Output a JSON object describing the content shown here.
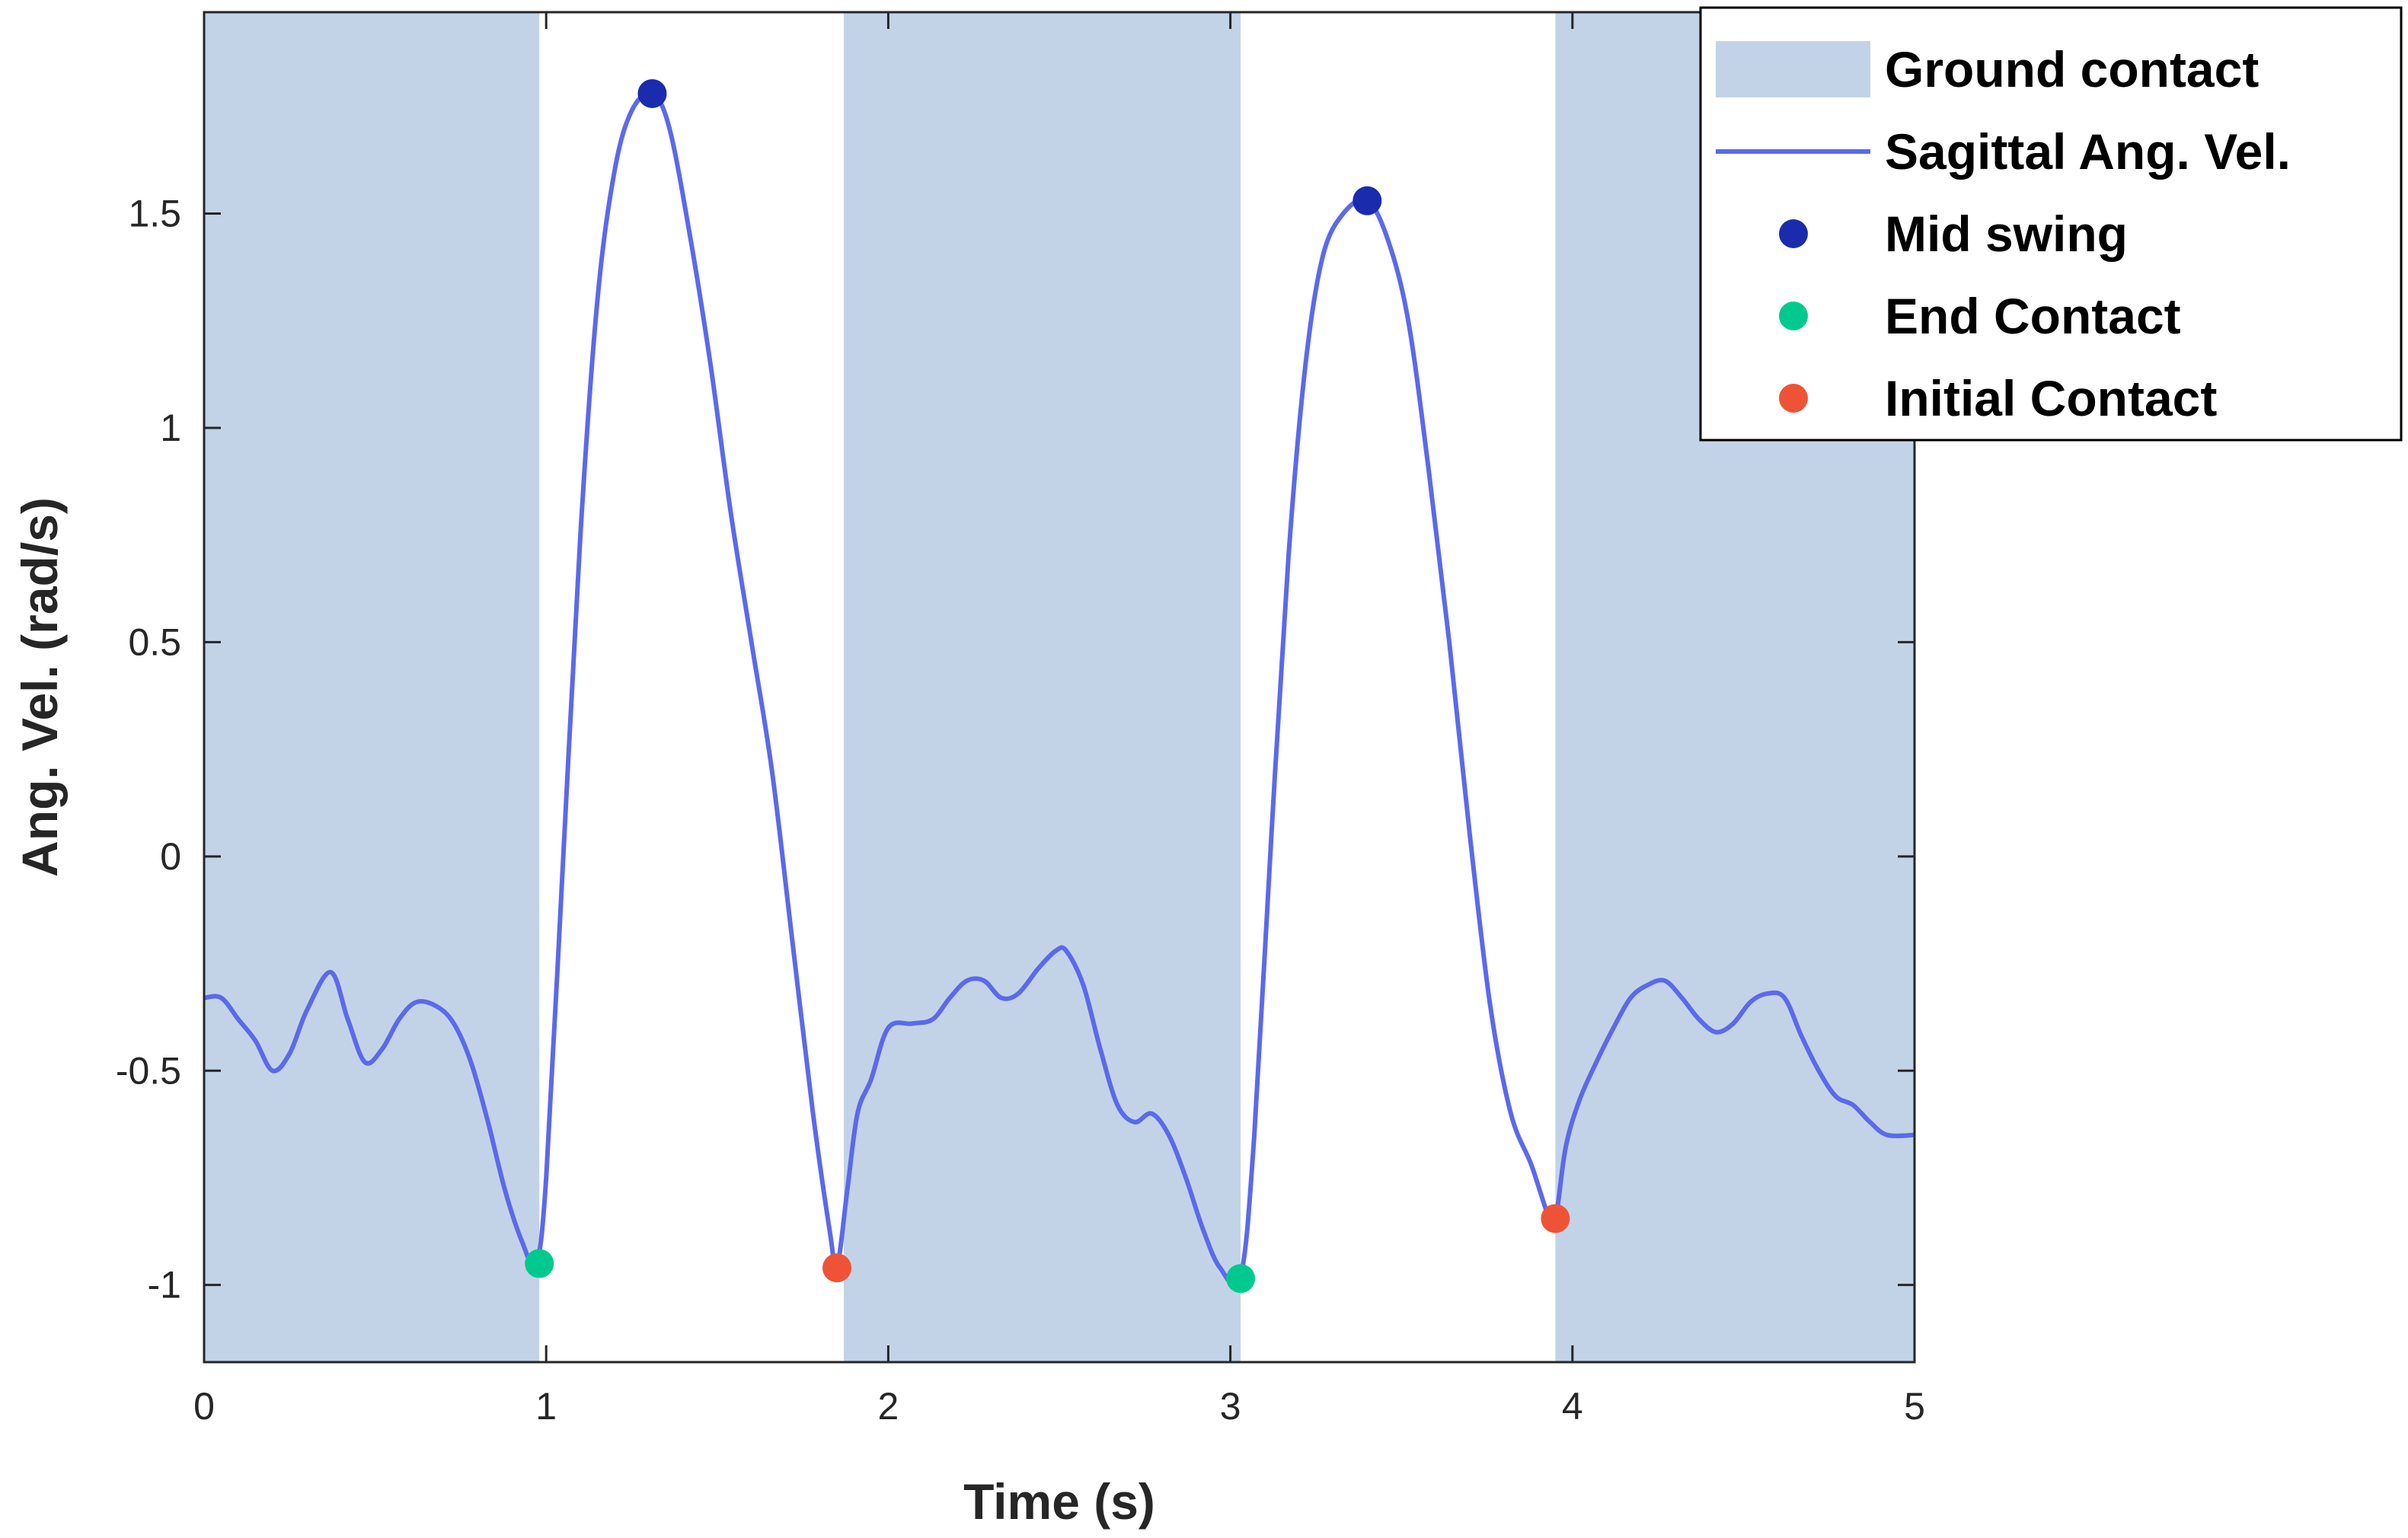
{
  "chart_data": {
    "type": "line",
    "title": "",
    "xlabel": "Time (s)",
    "ylabel": "Ang. Vel. (rad/s)",
    "xlim": [
      0,
      5
    ],
    "ylim": [
      -1.18,
      1.97
    ],
    "xticks": [
      0,
      1,
      2,
      3,
      4,
      5
    ],
    "xtick_labels": [
      "0",
      "1",
      "2",
      "3",
      "4",
      "5"
    ],
    "yticks": [
      -1,
      -0.5,
      0,
      0.5,
      1,
      1.5
    ],
    "ytick_labels": [
      "-1",
      "-0.5",
      "0",
      "0.5",
      "1",
      "1.5"
    ],
    "grid": false,
    "legend_position": "top-right",
    "colors": {
      "ground_contact": "#c3d3e7",
      "line": "#5b69ec",
      "mid_swing": "#1a2cad",
      "end_contact": "#00c98f",
      "initial_contact": "#ef5337"
    },
    "legend": [
      {
        "key": "ground_contact",
        "label": "Ground contact",
        "kind": "patch"
      },
      {
        "key": "line",
        "label": "Sagittal Ang. Vel.",
        "kind": "line"
      },
      {
        "key": "mid_swing",
        "label": "Mid swing",
        "kind": "marker"
      },
      {
        "key": "end_contact",
        "label": "End Contact",
        "kind": "marker"
      },
      {
        "key": "initial_contact",
        "label": "Initial Contact",
        "kind": "marker"
      }
    ],
    "ground_contact_intervals": [
      [
        0,
        0.98
      ],
      [
        1.87,
        3.03
      ],
      [
        3.95,
        5.0
      ]
    ],
    "series": [
      {
        "name": "Sagittal Ang. Vel.",
        "points": [
          [
            0,
            -0.33
          ],
          [
            0.05,
            -0.33
          ],
          [
            0.1,
            -0.38
          ],
          [
            0.15,
            -0.43
          ],
          [
            0.2,
            -0.5
          ],
          [
            0.25,
            -0.46
          ],
          [
            0.3,
            -0.36
          ],
          [
            0.37,
            -0.27
          ],
          [
            0.42,
            -0.38
          ],
          [
            0.47,
            -0.48
          ],
          [
            0.52,
            -0.45
          ],
          [
            0.57,
            -0.38
          ],
          [
            0.62,
            -0.34
          ],
          [
            0.68,
            -0.35
          ],
          [
            0.73,
            -0.39
          ],
          [
            0.78,
            -0.48
          ],
          [
            0.83,
            -0.62
          ],
          [
            0.88,
            -0.78
          ],
          [
            0.93,
            -0.9
          ],
          [
            0.97,
            -0.95
          ],
          [
            1.0,
            -0.75
          ],
          [
            1.05,
            0.0
          ],
          [
            1.1,
            0.75
          ],
          [
            1.15,
            1.3
          ],
          [
            1.2,
            1.6
          ],
          [
            1.25,
            1.74
          ],
          [
            1.31,
            1.78
          ],
          [
            1.36,
            1.7
          ],
          [
            1.42,
            1.45
          ],
          [
            1.48,
            1.15
          ],
          [
            1.54,
            0.8
          ],
          [
            1.6,
            0.5
          ],
          [
            1.66,
            0.2
          ],
          [
            1.72,
            -0.2
          ],
          [
            1.78,
            -0.6
          ],
          [
            1.83,
            -0.88
          ],
          [
            1.85,
            -0.96
          ],
          [
            1.88,
            -0.78
          ],
          [
            1.91,
            -0.6
          ],
          [
            1.95,
            -0.52
          ],
          [
            2.0,
            -0.4
          ],
          [
            2.07,
            -0.39
          ],
          [
            2.13,
            -0.38
          ],
          [
            2.18,
            -0.33
          ],
          [
            2.23,
            -0.29
          ],
          [
            2.28,
            -0.29
          ],
          [
            2.33,
            -0.33
          ],
          [
            2.38,
            -0.32
          ],
          [
            2.44,
            -0.26
          ],
          [
            2.49,
            -0.22
          ],
          [
            2.52,
            -0.22
          ],
          [
            2.57,
            -0.3
          ],
          [
            2.62,
            -0.45
          ],
          [
            2.67,
            -0.58
          ],
          [
            2.72,
            -0.62
          ],
          [
            2.77,
            -0.6
          ],
          [
            2.82,
            -0.65
          ],
          [
            2.87,
            -0.75
          ],
          [
            2.92,
            -0.87
          ],
          [
            2.97,
            -0.96
          ],
          [
            3.03,
            -0.98
          ],
          [
            3.07,
            -0.65
          ],
          [
            3.12,
            0.05
          ],
          [
            3.17,
            0.7
          ],
          [
            3.22,
            1.15
          ],
          [
            3.27,
            1.4
          ],
          [
            3.33,
            1.5
          ],
          [
            3.4,
            1.53
          ],
          [
            3.46,
            1.44
          ],
          [
            3.52,
            1.25
          ],
          [
            3.58,
            0.9
          ],
          [
            3.64,
            0.5
          ],
          [
            3.7,
            0.05
          ],
          [
            3.76,
            -0.35
          ],
          [
            3.82,
            -0.6
          ],
          [
            3.88,
            -0.72
          ],
          [
            3.93,
            -0.84
          ],
          [
            3.95,
            -0.85
          ],
          [
            3.98,
            -0.68
          ],
          [
            4.02,
            -0.57
          ],
          [
            4.07,
            -0.48
          ],
          [
            4.12,
            -0.4
          ],
          [
            4.17,
            -0.33
          ],
          [
            4.22,
            -0.3
          ],
          [
            4.27,
            -0.29
          ],
          [
            4.32,
            -0.33
          ],
          [
            4.37,
            -0.38
          ],
          [
            4.42,
            -0.41
          ],
          [
            4.47,
            -0.39
          ],
          [
            4.52,
            -0.34
          ],
          [
            4.57,
            -0.32
          ],
          [
            4.62,
            -0.33
          ],
          [
            4.67,
            -0.42
          ],
          [
            4.72,
            -0.5
          ],
          [
            4.77,
            -0.56
          ],
          [
            4.82,
            -0.58
          ],
          [
            4.87,
            -0.62
          ],
          [
            4.92,
            -0.65
          ],
          [
            5.0,
            -0.65
          ]
        ]
      }
    ],
    "events": [
      {
        "type": "end_contact",
        "x": 0.98,
        "y": -0.95
      },
      {
        "type": "mid_swing",
        "x": 1.31,
        "y": 1.78
      },
      {
        "type": "initial_contact",
        "x": 1.85,
        "y": -0.96
      },
      {
        "type": "end_contact",
        "x": 3.03,
        "y": -0.985
      },
      {
        "type": "mid_swing",
        "x": 3.4,
        "y": 1.53
      },
      {
        "type": "initial_contact",
        "x": 3.95,
        "y": -0.845
      }
    ]
  }
}
